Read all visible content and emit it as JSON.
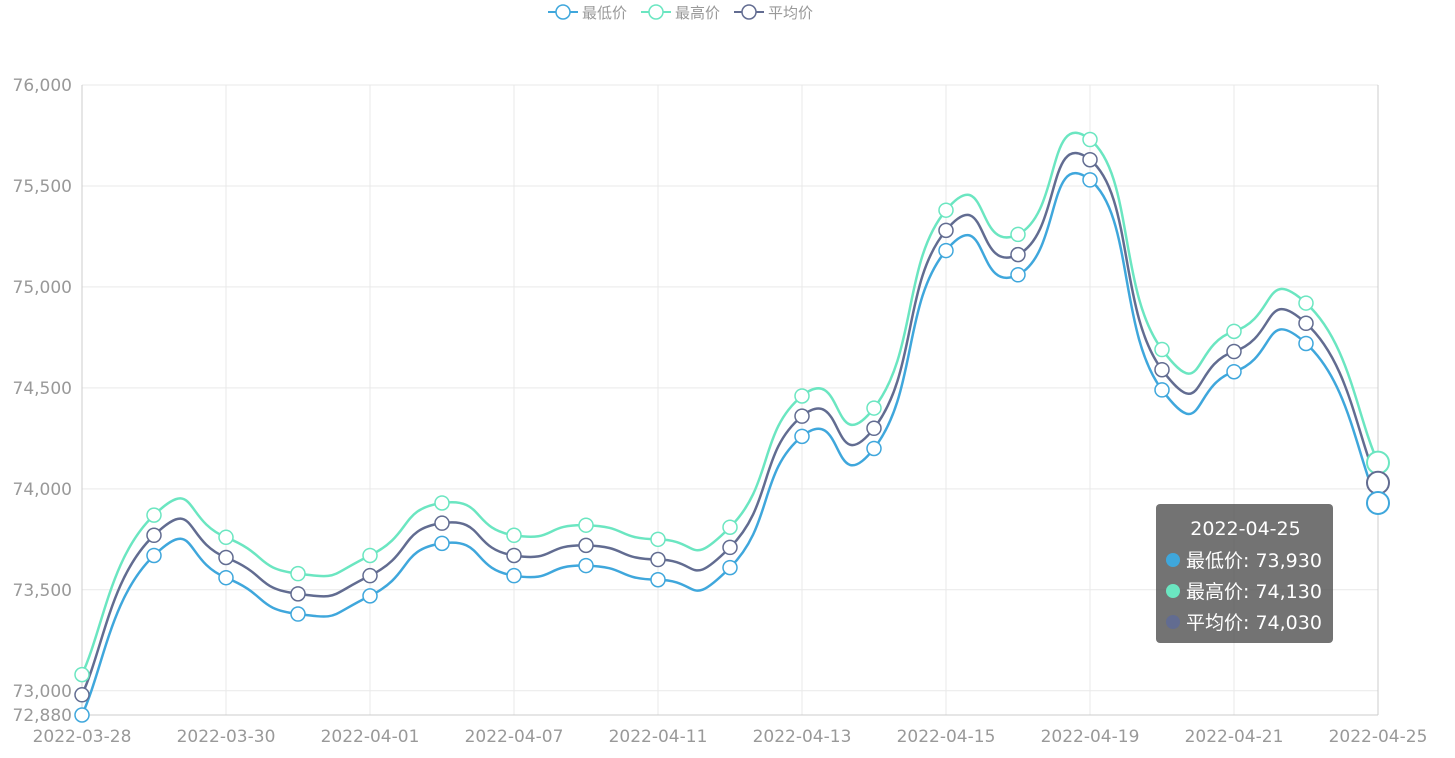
{
  "chart_data": {
    "type": "line",
    "smooth": true,
    "categories": [
      "2022-03-28",
      "2022-03-29",
      "2022-03-30",
      "2022-03-31",
      "2022-04-01",
      "2022-04-06",
      "2022-04-07",
      "2022-04-08",
      "2022-04-11",
      "2022-04-12",
      "2022-04-13",
      "2022-04-14",
      "2022-04-15",
      "2022-04-18",
      "2022-04-19",
      "2022-04-20",
      "2022-04-21",
      "2022-04-22",
      "2022-04-25"
    ],
    "xtick_labels": [
      "2022-03-28",
      "2022-03-30",
      "2022-04-01",
      "2022-04-07",
      "2022-04-11",
      "2022-04-13",
      "2022-04-15",
      "2022-04-19",
      "2022-04-21",
      "2022-04-25"
    ],
    "ytick_labels": [
      "72,880",
      "73,000",
      "73,500",
      "74,000",
      "74,500",
      "75,000",
      "75,500",
      "76,000"
    ],
    "ylim": [
      72880,
      76000
    ],
    "yticks": [
      72880,
      73000,
      73500,
      74000,
      74500,
      75000,
      75500,
      76000
    ],
    "grid": true,
    "legend_position": "top-center",
    "series": [
      {
        "name": "最低价",
        "color": "#3fa7dc",
        "values": [
          72880,
          73670,
          73560,
          73380,
          73470,
          73730,
          73570,
          73620,
          73550,
          73610,
          74260,
          74200,
          75180,
          75060,
          75530,
          74490,
          74580,
          74720,
          73930
        ]
      },
      {
        "name": "最高价",
        "color": "#6be6c1",
        "values": [
          73080,
          73870,
          73760,
          73580,
          73670,
          73930,
          73770,
          73820,
          73750,
          73810,
          74460,
          74400,
          75380,
          75260,
          75730,
          74690,
          74780,
          74920,
          74130
        ]
      },
      {
        "name": "平均价",
        "color": "#626c91",
        "values": [
          72980,
          73770,
          73660,
          73480,
          73570,
          73830,
          73670,
          73720,
          73650,
          73710,
          74360,
          74300,
          75280,
          75160,
          75630,
          74590,
          74680,
          74820,
          74030
        ]
      }
    ],
    "tooltip": {
      "title": "2022-04-25",
      "rows": [
        {
          "label": "最低价: 73,930",
          "color": "#3fa7dc"
        },
        {
          "label": "最高价: 74,130",
          "color": "#6be6c1"
        },
        {
          "label": "平均价: 74,030",
          "color": "#626c91"
        }
      ]
    }
  }
}
